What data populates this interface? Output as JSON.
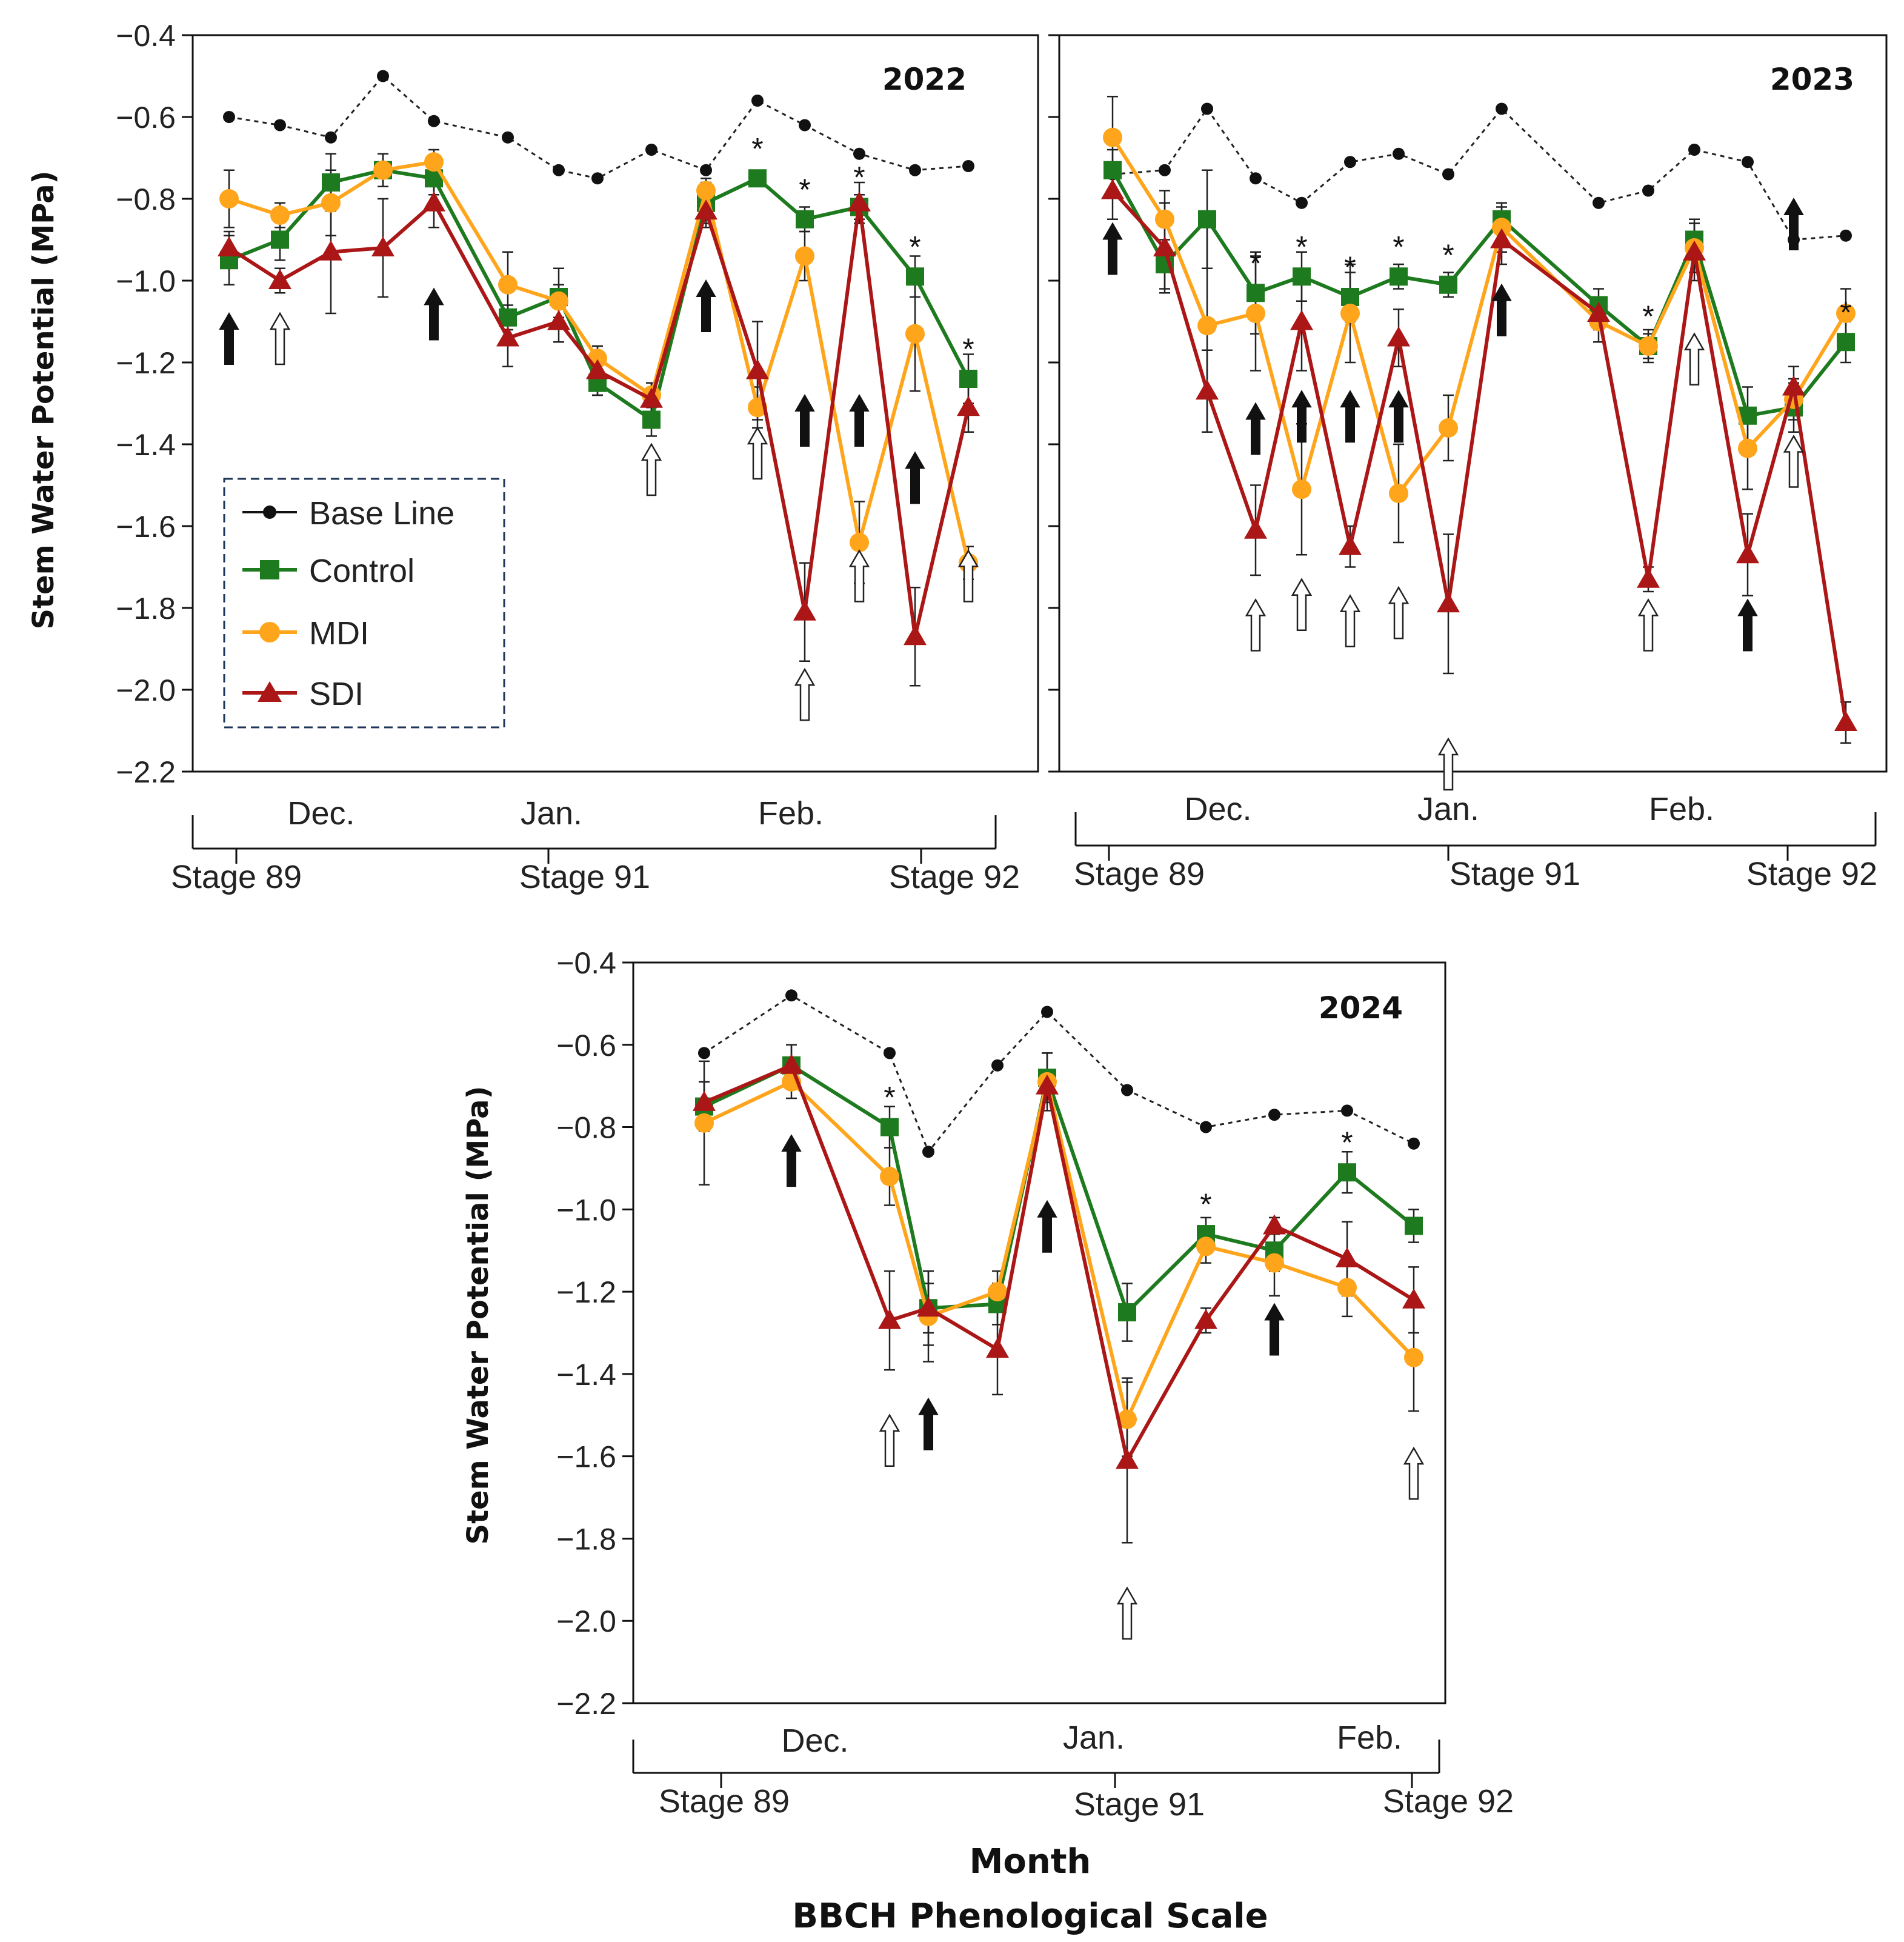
{
  "legend": [
    {
      "name": "Base Line",
      "color": "#111111",
      "marker": "circle",
      "dash": true
    },
    {
      "name": "Control",
      "color": "#1e7a1e",
      "marker": "square",
      "dash": false
    },
    {
      "name": "MDI",
      "color": "#ffa51c",
      "marker": "circle",
      "dash": false
    },
    {
      "name": "SDI",
      "color": "#ab1616",
      "marker": "triangle",
      "dash": false
    }
  ],
  "ylabel": "Stem Water Potential (MPa)",
  "bottom_titles": [
    "Month",
    "BBCH Phenological Scale"
  ],
  "chart_data": [
    {
      "type": "line",
      "title": "2022",
      "ylim": [
        -2.2,
        -0.4
      ],
      "yticks": [
        "−0.4",
        "−0.6",
        "−0.8",
        "−1.0",
        "−1.2",
        "−1.4",
        "−1.6",
        "−1.8",
        "−2.0",
        "−2.2"
      ],
      "months": [
        "Dec.",
        "Jan.",
        "Feb."
      ],
      "stages": [
        "Stage 89",
        "Stage 91",
        "Stage 92"
      ],
      "series": [
        {
          "name": "Base Line",
          "values": [
            -0.6,
            -0.62,
            -0.65,
            -0.5,
            -0.61,
            -0.65,
            -0.73,
            -0.75,
            -0.68,
            -0.73,
            -0.56,
            -0.62,
            -0.69,
            -0.73,
            -0.72
          ]
        },
        {
          "name": "Control",
          "values": [
            -0.95,
            -0.9,
            -0.76,
            -0.73,
            -0.75,
            -1.09,
            -1.04,
            -1.25,
            -1.34,
            -0.81,
            -0.75,
            -0.85,
            -0.82,
            -0.99,
            -1.24
          ]
        },
        {
          "name": "MDI",
          "values": [
            -0.8,
            -0.84,
            -0.81,
            -0.73,
            -0.71,
            -1.01,
            -1.05,
            -1.19,
            -1.28,
            -0.78,
            -1.31,
            -0.94,
            -1.64,
            -1.13,
            -1.69
          ]
        },
        {
          "name": "SDI",
          "values": [
            -0.92,
            -1.0,
            -0.93,
            -0.92,
            -0.81,
            -1.14,
            -1.1,
            -1.22,
            -1.29,
            -0.83,
            -1.22,
            -1.81,
            -0.81,
            -1.87,
            -1.31
          ]
        }
      ],
      "significance": [
        "*",
        "*",
        "*",
        "*",
        "*"
      ],
      "irrigation_arrows": [
        {
          "kind": "solid"
        },
        {
          "kind": "open"
        },
        {
          "kind": "solid"
        },
        {
          "kind": "open"
        },
        {
          "kind": "solid"
        },
        {
          "kind": "open"
        },
        {
          "kind": "solid"
        },
        {
          "kind": "open"
        },
        {
          "kind": "solid"
        },
        {
          "kind": "open"
        },
        {
          "kind": "solid"
        },
        {
          "kind": "open"
        }
      ]
    },
    {
      "type": "line",
      "title": "2023",
      "ylim": [
        -2.2,
        -0.4
      ],
      "months": [
        "Dec.",
        "Jan.",
        "Feb."
      ],
      "stages": [
        "Stage 89",
        "Stage 91",
        "Stage 92"
      ],
      "series": [
        {
          "name": "Base Line",
          "values": [
            -0.74,
            -0.73,
            -0.58,
            -0.75,
            -0.81,
            -0.71,
            -0.69,
            -0.74,
            -0.58,
            -0.81,
            -0.78,
            -0.68,
            -0.71,
            -0.9,
            -0.89
          ]
        },
        {
          "name": "Control",
          "values": [
            -0.73,
            -0.96,
            -0.85,
            -1.03,
            -0.99,
            -1.04,
            -0.99,
            -1.01,
            -0.85,
            -1.06,
            -1.16,
            -0.9,
            -1.33,
            -1.31,
            -1.15
          ]
        },
        {
          "name": "MDI",
          "values": [
            -0.65,
            -0.85,
            -1.11,
            -1.08,
            -1.51,
            -1.08,
            -1.52,
            -1.36,
            -0.87,
            -1.1,
            -1.16,
            -0.92,
            -1.41,
            -1.29,
            -1.08
          ]
        },
        {
          "name": "SDI",
          "values": [
            -0.78,
            -0.92,
            -1.27,
            -1.61,
            -1.1,
            -1.65,
            -1.14,
            -1.79,
            -0.9,
            -1.08,
            -1.73,
            -0.93,
            -1.67,
            -1.26,
            -2.08
          ]
        }
      ],
      "significance": [
        "*",
        "*",
        "*",
        "*",
        "*",
        "*",
        "*"
      ],
      "irrigation_arrows": [
        {
          "kind": "solid"
        },
        {
          "kind": "solid"
        },
        {
          "kind": "open"
        },
        {
          "kind": "solid"
        },
        {
          "kind": "open"
        },
        {
          "kind": "solid"
        },
        {
          "kind": "open"
        },
        {
          "kind": "solid"
        },
        {
          "kind": "open"
        },
        {
          "kind": "open"
        },
        {
          "kind": "solid"
        },
        {
          "kind": "open"
        },
        {
          "kind": "open"
        },
        {
          "kind": "solid"
        },
        {
          "kind": "open"
        },
        {
          "kind": "solid"
        }
      ]
    },
    {
      "type": "line",
      "title": "2024",
      "ylim": [
        -2.2,
        -0.4
      ],
      "yticks": [
        "−0.4",
        "−0.6",
        "−0.8",
        "−1.0",
        "−1.2",
        "−1.4",
        "−1.6",
        "−1.8",
        "−2.0",
        "−2.2"
      ],
      "months": [
        "Dec.",
        "Jan.",
        "Feb."
      ],
      "stages": [
        "Stage 89",
        "Stage 91",
        "Stage 92"
      ],
      "series": [
        {
          "name": "Base Line",
          "values": [
            -0.62,
            -0.48,
            -0.62,
            -0.86,
            -0.65,
            -0.52,
            -0.71,
            -0.8,
            -0.77,
            -0.76,
            -0.84
          ]
        },
        {
          "name": "Control",
          "values": [
            -0.75,
            -0.65,
            -0.8,
            -1.24,
            -1.23,
            -0.68,
            -1.25,
            -1.06,
            -1.1,
            -0.91,
            -1.04
          ]
        },
        {
          "name": "MDI",
          "values": [
            -0.79,
            -0.69,
            -0.92,
            -1.26,
            -1.2,
            -0.69,
            -1.51,
            -1.09,
            -1.13,
            -1.19,
            -1.36
          ]
        },
        {
          "name": "SDI",
          "values": [
            -0.74,
            -0.65,
            -1.27,
            -1.24,
            -1.34,
            -0.7,
            -1.61,
            -1.27,
            -1.04,
            -1.12,
            -1.22
          ]
        }
      ],
      "significance": [
        "*",
        "*",
        "*"
      ],
      "irrigation_arrows": [
        {
          "kind": "solid"
        },
        {
          "kind": "open"
        },
        {
          "kind": "solid"
        },
        {
          "kind": "solid"
        },
        {
          "kind": "open"
        },
        {
          "kind": "solid"
        },
        {
          "kind": "open"
        }
      ]
    }
  ]
}
